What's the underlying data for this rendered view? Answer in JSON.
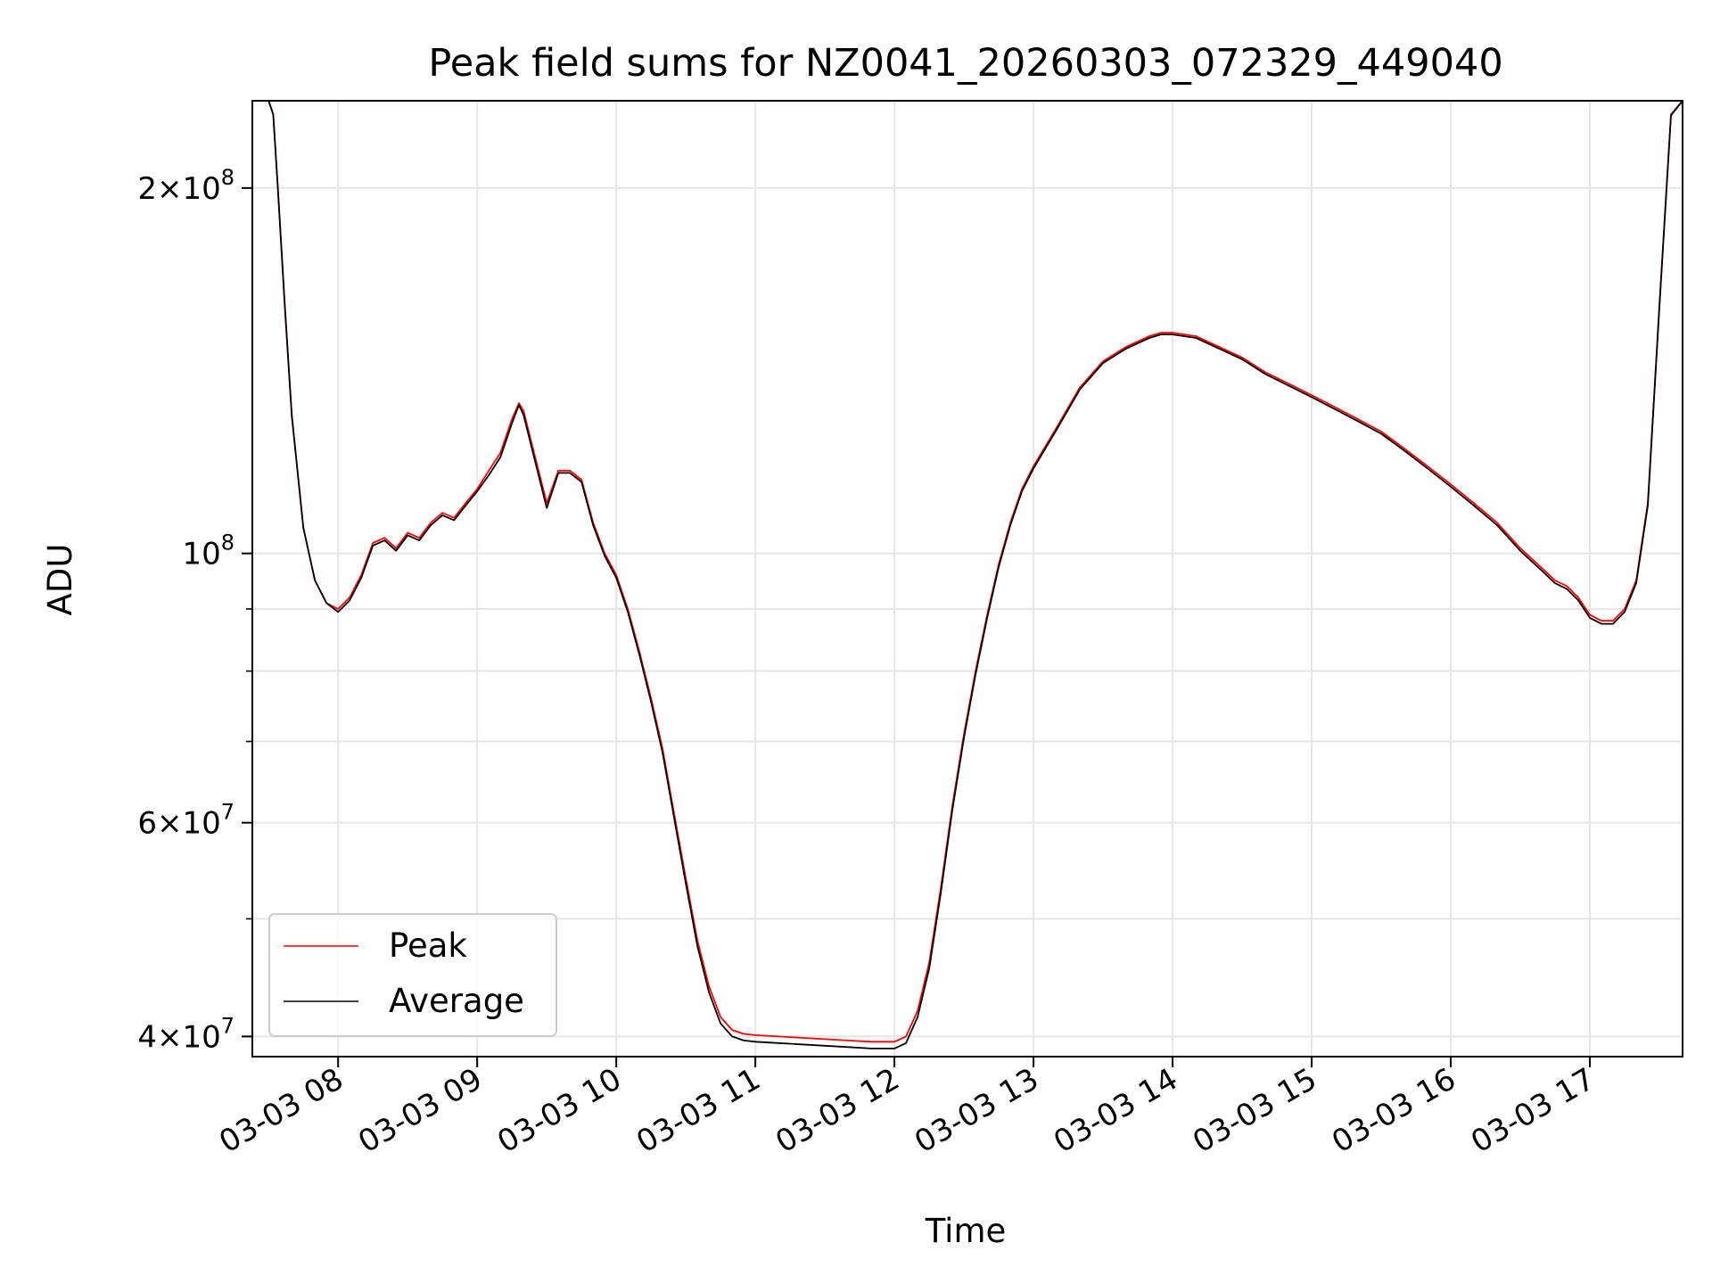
{
  "chart_data": {
    "type": "line",
    "title": "Peak field sums for NZ0041_20260303_072329_449040",
    "xlabel": "Time",
    "ylabel": "ADU",
    "yscale": "log",
    "grid": true,
    "legend_placement": "lower-left",
    "xlim": [
      "03-03 07:23",
      "03-03 17:40"
    ],
    "ylim": [
      38500000,
      236000000
    ],
    "x_ticks": [
      {
        "label": "03-03 08",
        "value": "03-03 08:00"
      },
      {
        "label": "03-03 09",
        "value": "03-03 09:00"
      },
      {
        "label": "03-03 10",
        "value": "03-03 10:00"
      },
      {
        "label": "03-03 11",
        "value": "03-03 11:00"
      },
      {
        "label": "03-03 12",
        "value": "03-03 12:00"
      },
      {
        "label": "03-03 13",
        "value": "03-03 13:00"
      },
      {
        "label": "03-03 14",
        "value": "03-03 14:00"
      },
      {
        "label": "03-03 15",
        "value": "03-03 15:00"
      },
      {
        "label": "03-03 16",
        "value": "03-03 16:00"
      },
      {
        "label": "03-03 17",
        "value": "03-03 17:00"
      }
    ],
    "y_ticks": [
      {
        "base": "2×10",
        "exp": "8",
        "value": 200000000
      },
      {
        "base": "10",
        "exp": "8",
        "value": 100000000
      },
      {
        "base": "6×10",
        "exp": "7",
        "value": 60000000
      },
      {
        "base": "4×10",
        "exp": "7",
        "value": 40000000
      }
    ],
    "y_minor_ticks": [
      50000000,
      70000000,
      80000000,
      90000000
    ],
    "series": [
      {
        "name": "Peak",
        "color": "#ff0000",
        "x": [
          "03-03 07:23",
          "03-03 07:30",
          "03-03 07:32",
          "03-03 07:34",
          "03-03 07:37",
          "03-03 07:40",
          "03-03 07:45",
          "03-03 07:50",
          "03-03 07:55",
          "03-03 08:00",
          "03-03 08:05",
          "03-03 08:10",
          "03-03 08:15",
          "03-03 08:20",
          "03-03 08:25",
          "03-03 08:30",
          "03-03 08:35",
          "03-03 08:40",
          "03-03 08:45",
          "03-03 08:50",
          "03-03 08:55",
          "03-03 09:00",
          "03-03 09:05",
          "03-03 09:10",
          "03-03 09:15",
          "03-03 09:18",
          "03-03 09:20",
          "03-03 09:25",
          "03-03 09:30",
          "03-03 09:35",
          "03-03 09:40",
          "03-03 09:45",
          "03-03 09:50",
          "03-03 09:55",
          "03-03 10:00",
          "03-03 10:05",
          "03-03 10:10",
          "03-03 10:15",
          "03-03 10:20",
          "03-03 10:25",
          "03-03 10:30",
          "03-03 10:35",
          "03-03 10:40",
          "03-03 10:45",
          "03-03 10:50",
          "03-03 10:55",
          "03-03 11:00",
          "03-03 11:10",
          "03-03 11:20",
          "03-03 11:30",
          "03-03 11:40",
          "03-03 11:50",
          "03-03 12:00",
          "03-03 12:05",
          "03-03 12:10",
          "03-03 12:15",
          "03-03 12:20",
          "03-03 12:25",
          "03-03 12:30",
          "03-03 12:35",
          "03-03 12:40",
          "03-03 12:45",
          "03-03 12:50",
          "03-03 12:55",
          "03-03 13:00",
          "03-03 13:10",
          "03-03 13:20",
          "03-03 13:30",
          "03-03 13:40",
          "03-03 13:50",
          "03-03 13:55",
          "03-03 14:00",
          "03-03 14:10",
          "03-03 14:20",
          "03-03 14:30",
          "03-03 14:40",
          "03-03 14:50",
          "03-03 15:00",
          "03-03 15:10",
          "03-03 15:20",
          "03-03 15:30",
          "03-03 15:40",
          "03-03 15:50",
          "03-03 16:00",
          "03-03 16:10",
          "03-03 16:20",
          "03-03 16:30",
          "03-03 16:40",
          "03-03 16:45",
          "03-03 16:50",
          "03-03 16:55",
          "03-03 17:00",
          "03-03 17:05",
          "03-03 17:10",
          "03-03 17:15",
          "03-03 17:20",
          "03-03 17:25",
          "03-03 17:30",
          "03-03 17:35",
          "03-03 17:40"
        ],
        "y": [
          236000000,
          236000000,
          230000000,
          200000000,
          160000000,
          130000000,
          105000000,
          95000000,
          91000000,
          90000000,
          92000000,
          96000000,
          102000000,
          103000000,
          101000000,
          104000000,
          103000000,
          106000000,
          108000000,
          107000000,
          110000000,
          113000000,
          117000000,
          121000000,
          129000000,
          133000000,
          131000000,
          120000000,
          110000000,
          117000000,
          117000000,
          115000000,
          106000000,
          100000000,
          96000000,
          90000000,
          83000000,
          76000000,
          69000000,
          61000000,
          54000000,
          48000000,
          44000000,
          41500000,
          40500000,
          40200000,
          40100000,
          40000000,
          39900000,
          39800000,
          39700000,
          39600000,
          39600000,
          40000000,
          42000000,
          46000000,
          53000000,
          62000000,
          71000000,
          80000000,
          89000000,
          98000000,
          106000000,
          113000000,
          118000000,
          127000000,
          137000000,
          144000000,
          148000000,
          151000000,
          152000000,
          152000000,
          151000000,
          148000000,
          145000000,
          141000000,
          138000000,
          135000000,
          132000000,
          129000000,
          126000000,
          122000000,
          118000000,
          114000000,
          110000000,
          106000000,
          101000000,
          97000000,
          95000000,
          94000000,
          92000000,
          89000000,
          88000000,
          88000000,
          90000000,
          95000000,
          110000000,
          160000000,
          230000000,
          236000000
        ]
      },
      {
        "name": "Average",
        "color": "#000000",
        "x": [
          "03-03 07:23",
          "03-03 07:30",
          "03-03 07:32",
          "03-03 07:34",
          "03-03 07:37",
          "03-03 07:40",
          "03-03 07:45",
          "03-03 07:50",
          "03-03 07:55",
          "03-03 08:00",
          "03-03 08:05",
          "03-03 08:10",
          "03-03 08:15",
          "03-03 08:20",
          "03-03 08:25",
          "03-03 08:30",
          "03-03 08:35",
          "03-03 08:40",
          "03-03 08:45",
          "03-03 08:50",
          "03-03 08:55",
          "03-03 09:00",
          "03-03 09:05",
          "03-03 09:10",
          "03-03 09:15",
          "03-03 09:18",
          "03-03 09:20",
          "03-03 09:25",
          "03-03 09:30",
          "03-03 09:35",
          "03-03 09:40",
          "03-03 09:45",
          "03-03 09:50",
          "03-03 09:55",
          "03-03 10:00",
          "03-03 10:05",
          "03-03 10:10",
          "03-03 10:15",
          "03-03 10:20",
          "03-03 10:25",
          "03-03 10:30",
          "03-03 10:35",
          "03-03 10:40",
          "03-03 10:45",
          "03-03 10:50",
          "03-03 10:55",
          "03-03 11:00",
          "03-03 11:10",
          "03-03 11:20",
          "03-03 11:30",
          "03-03 11:40",
          "03-03 11:50",
          "03-03 12:00",
          "03-03 12:05",
          "03-03 12:10",
          "03-03 12:15",
          "03-03 12:20",
          "03-03 12:25",
          "03-03 12:30",
          "03-03 12:35",
          "03-03 12:40",
          "03-03 12:45",
          "03-03 12:50",
          "03-03 12:55",
          "03-03 13:00",
          "03-03 13:10",
          "03-03 13:20",
          "03-03 13:30",
          "03-03 13:40",
          "03-03 13:50",
          "03-03 13:55",
          "03-03 14:00",
          "03-03 14:10",
          "03-03 14:20",
          "03-03 14:30",
          "03-03 14:40",
          "03-03 14:50",
          "03-03 15:00",
          "03-03 15:10",
          "03-03 15:20",
          "03-03 15:30",
          "03-03 15:40",
          "03-03 15:50",
          "03-03 16:00",
          "03-03 16:10",
          "03-03 16:20",
          "03-03 16:30",
          "03-03 16:40",
          "03-03 16:45",
          "03-03 16:50",
          "03-03 16:55",
          "03-03 17:00",
          "03-03 17:05",
          "03-03 17:10",
          "03-03 17:15",
          "03-03 17:20",
          "03-03 17:25",
          "03-03 17:30",
          "03-03 17:35",
          "03-03 17:40"
        ],
        "y": [
          236000000,
          236000000,
          230000000,
          200000000,
          160000000,
          130000000,
          105000000,
          95000000,
          91000000,
          89500000,
          91500000,
          95500000,
          101500000,
          102500000,
          100500000,
          103500000,
          102500000,
          105500000,
          107500000,
          106500000,
          109500000,
          112500000,
          116000000,
          120000000,
          128000000,
          132500000,
          130000000,
          119000000,
          109000000,
          116500000,
          116500000,
          114500000,
          105500000,
          99500000,
          95500000,
          89500000,
          82500000,
          75500000,
          68500000,
          60500000,
          53500000,
          47500000,
          43500000,
          41000000,
          40000000,
          39700000,
          39600000,
          39500000,
          39400000,
          39300000,
          39200000,
          39100000,
          39100000,
          39500000,
          41500000,
          45500000,
          52500000,
          61500000,
          70500000,
          79500000,
          88500000,
          97500000,
          105500000,
          112500000,
          117500000,
          126500000,
          136500000,
          143500000,
          147500000,
          150500000,
          151500000,
          151500000,
          150500000,
          147500000,
          144500000,
          140500000,
          137500000,
          134500000,
          131500000,
          128500000,
          125500000,
          121500000,
          117500000,
          113500000,
          109500000,
          105500000,
          100500000,
          96500000,
          94500000,
          93500000,
          91500000,
          88500000,
          87500000,
          87500000,
          89500000,
          94500000,
          109500000,
          159500000,
          229500000,
          236000000
        ]
      }
    ]
  }
}
